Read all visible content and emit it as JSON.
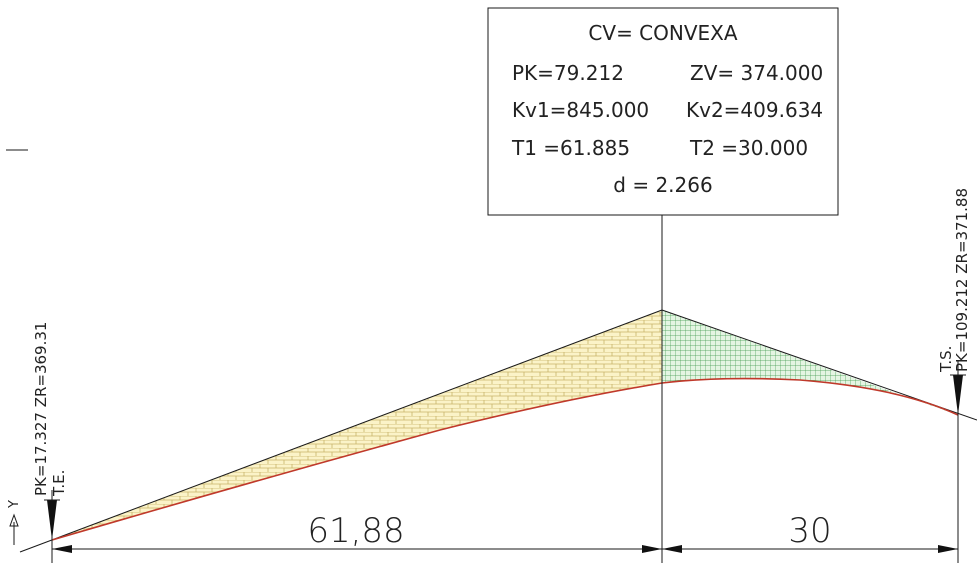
{
  "info_box": {
    "title": "CV= CONVEXA",
    "pk": "PK=79.212",
    "zv": "ZV= 374.000",
    "kv1": "Kv1=845.000",
    "kv2": "Kv2=409.634",
    "t1": "T1 =61.885",
    "t2": "T2 =30.000",
    "d": "d = 2.266"
  },
  "start_point": {
    "pk_zr": "PK=17.327  ZR=369.31",
    "tag": "T.E."
  },
  "end_point": {
    "pk_zr": "PK=109.212  ZR=371.88",
    "tag": "T.S."
  },
  "dimensions": {
    "left": "61,88",
    "right": "30"
  },
  "axis_label": "Y",
  "colors": {
    "line": "#1a1a1a",
    "curve": "#c0392b",
    "hatch_left": "#c8b46a",
    "fill_left": "#fbf3c8",
    "hatch_right": "#3f9a4c",
    "fill_right": "#e4f5e2"
  }
}
